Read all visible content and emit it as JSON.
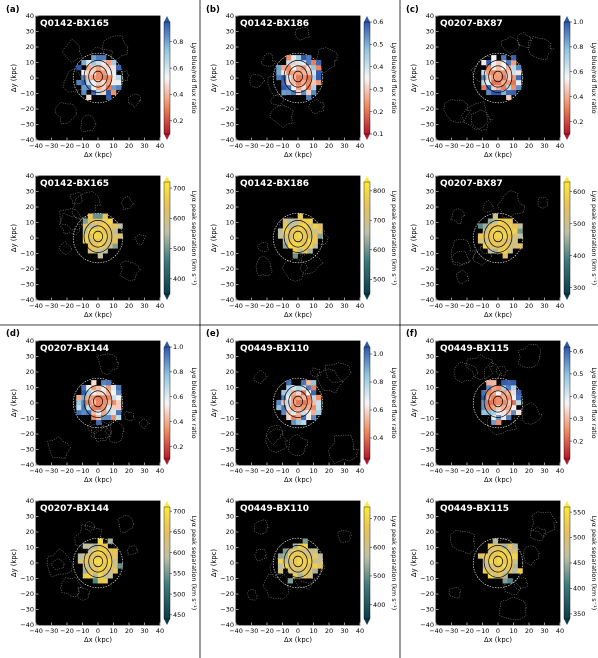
{
  "figure": {
    "panel_letters": [
      "(a)",
      "(b)",
      "(c)",
      "(d)",
      "(e)",
      "(f)"
    ],
    "xlabel": "Δx (kpc)",
    "ylabel": "Δy (kpc)",
    "axis_ticks": [
      "−40",
      "−30",
      "−20",
      "−10",
      "0",
      "10",
      "20",
      "30",
      "40"
    ],
    "axis_tick_values": [
      -40,
      -30,
      -20,
      -10,
      0,
      10,
      20,
      30,
      40
    ],
    "axis_range": [
      -40,
      40
    ],
    "ratio_cbar_label": "Lyα blue/red flux ratio",
    "sep_cbar_label": "Lyα peak separation (km s⁻¹)"
  },
  "colors": {
    "background": "#000000",
    "contour_inner": "#000000",
    "contour_outer": "#ffffff"
  },
  "chart_data": [
    {
      "type": "heatmap",
      "title": "Q0142-BX165",
      "panel": "(a)",
      "quantity": "ratio",
      "colorbar_ticks": [
        0.8,
        0.6,
        0.4,
        0.2
      ],
      "clim": [
        0.1,
        0.95
      ]
    },
    {
      "type": "heatmap",
      "title": "Q0142-BX186",
      "panel": "(b)",
      "quantity": "ratio",
      "colorbar_ticks": [
        0.6,
        0.5,
        0.4,
        0.3,
        0.2,
        0.1
      ],
      "clim": [
        0.1,
        0.6
      ]
    },
    {
      "type": "heatmap",
      "title": "Q0207-BX87",
      "panel": "(c)",
      "quantity": "ratio",
      "colorbar_ticks": [
        1.0,
        0.8,
        0.6,
        0.4,
        0.2
      ],
      "clim": [
        0.1,
        1.0
      ]
    },
    {
      "type": "heatmap",
      "title": "Q0142-BX165",
      "panel": "(a)",
      "quantity": "separation",
      "colorbar_ticks": [
        700,
        600,
        500,
        400
      ],
      "clim": [
        350,
        720
      ]
    },
    {
      "type": "heatmap",
      "title": "Q0142-BX186",
      "panel": "(b)",
      "quantity": "separation",
      "colorbar_ticks": [
        800,
        700,
        600,
        500
      ],
      "clim": [
        450,
        830
      ]
    },
    {
      "type": "heatmap",
      "title": "Q0207-BX87",
      "panel": "(c)",
      "quantity": "separation",
      "colorbar_ticks": [
        600,
        500,
        400,
        300
      ],
      "clim": [
        280,
        630
      ]
    },
    {
      "type": "heatmap",
      "title": "Q0207-BX144",
      "panel": "(d)",
      "quantity": "ratio",
      "colorbar_ticks": [
        1.0,
        0.8,
        0.6,
        0.4,
        0.2
      ],
      "clim": [
        0.1,
        1.0
      ]
    },
    {
      "type": "heatmap",
      "title": "Q0449-BX110",
      "panel": "(e)",
      "quantity": "ratio",
      "colorbar_ticks": [
        1.0,
        0.8,
        0.6,
        0.4
      ],
      "clim": [
        0.25,
        1.05
      ]
    },
    {
      "type": "heatmap",
      "title": "Q0449-BX115",
      "panel": "(f)",
      "quantity": "ratio",
      "colorbar_ticks": [
        0.6,
        0.5,
        0.4,
        0.3,
        0.2
      ],
      "clim": [
        0.12,
        0.62
      ]
    },
    {
      "type": "heatmap",
      "title": "Q0207-BX144",
      "panel": "(d)",
      "quantity": "separation",
      "colorbar_ticks": [
        700,
        650,
        600,
        550,
        500,
        450
      ],
      "clim": [
        440,
        710
      ]
    },
    {
      "type": "heatmap",
      "title": "Q0449-BX110",
      "panel": "(e)",
      "quantity": "separation",
      "colorbar_ticks": [
        700,
        600,
        500,
        400
      ],
      "clim": [
        350,
        740
      ]
    },
    {
      "type": "heatmap",
      "title": "Q0449-BX115",
      "panel": "(f)",
      "quantity": "separation",
      "colorbar_ticks": [
        550,
        500,
        450,
        400,
        350
      ],
      "clim": [
        340,
        560
      ]
    }
  ]
}
